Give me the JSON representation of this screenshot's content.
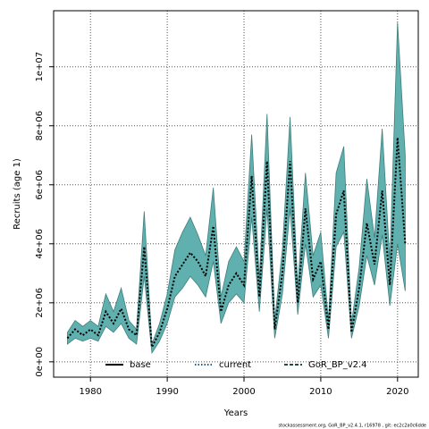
{
  "chart_data": {
    "type": "line",
    "x_label": "Years",
    "y_label": "Recruits (age 1)",
    "footer": "stockassessment.org, GoR_BP_v2.4.1, r16978 , git: ec2c2a0c6dde",
    "x": [
      1977,
      1978,
      1979,
      1980,
      1981,
      1982,
      1983,
      1984,
      1985,
      1986,
      1987,
      1988,
      1989,
      1990,
      1991,
      1992,
      1993,
      1994,
      1995,
      1996,
      1997,
      1998,
      1999,
      2000,
      2001,
      2002,
      2003,
      2004,
      2005,
      2006,
      2007,
      2008,
      2009,
      2010,
      2011,
      2012,
      2013,
      2014,
      2015,
      2016,
      2017,
      2018,
      2019,
      2020,
      2021
    ],
    "values": [
      800000.0,
      1100000.0,
      900000.0,
      1100000.0,
      900000.0,
      1700000.0,
      1300000.0,
      1800000.0,
      1100000.0,
      900000.0,
      3900000.0,
      500000.0,
      1000000.0,
      1800000.0,
      2900000.0,
      3300000.0,
      3700000.0,
      3400000.0,
      2900000.0,
      4600000.0,
      1700000.0,
      2600000.0,
      3000000.0,
      2600000.0,
      6300000.0,
      2200000.0,
      6800000.0,
      1100000.0,
      3000000.0,
      6800000.0,
      2000000.0,
      5200000.0,
      2800000.0,
      3400000.0,
      1100000.0,
      5000000.0,
      5800000.0,
      1000000.0,
      2500000.0,
      4700000.0,
      3300000.0,
      5800000.0,
      2600000.0,
      7600000.0,
      4000000.0
    ],
    "upper": [
      1000000.0,
      1400000.0,
      1200000.0,
      1400000.0,
      1200000.0,
      2300000.0,
      1700000.0,
      2500000.0,
      1400000.0,
      1100000.0,
      5100000.0,
      600000.0,
      1300000.0,
      2300000.0,
      3800000.0,
      4400000.0,
      4900000.0,
      4300000.0,
      3600000.0,
      5900000.0,
      2200000.0,
      3400000.0,
      3900000.0,
      3400000.0,
      7700000.0,
      2800000.0,
      8400000.0,
      1400000.0,
      3800000.0,
      8300000.0,
      2500000.0,
      6400000.0,
      3600000.0,
      4400000.0,
      1400000.0,
      6400000.0,
      7300000.0,
      1300000.0,
      3200000.0,
      6200000.0,
      4200000.0,
      7900000.0,
      3400000.0,
      11500000.0,
      7000000.0
    ],
    "lower": [
      600000.0,
      800000.0,
      700000.0,
      800000.0,
      700000.0,
      1200000.0,
      1000000.0,
      1300000.0,
      800000.0,
      600000.0,
      2900000.0,
      300000.0,
      700000.0,
      1300000.0,
      2200000.0,
      2500000.0,
      2900000.0,
      2600000.0,
      2200000.0,
      3400000.0,
      1300000.0,
      2000000.0,
      2300000.0,
      2000000.0,
      4900000.0,
      1700000.0,
      5200000.0,
      800000.0,
      2300000.0,
      5200000.0,
      1600000.0,
      4000000.0,
      2200000.0,
      2600000.0,
      800000.0,
      3900000.0,
      4400000.0,
      800000.0,
      1900000.0,
      3600000.0,
      2600000.0,
      4300000.0,
      1900000.0,
      4000000.0,
      2400000.0
    ],
    "color": "#000000",
    "band_color": "#5fb0ae",
    "band_edge": "#3f7f7d",
    "legend": [
      {
        "name": "base",
        "color": "#000000",
        "dash": "solid"
      },
      {
        "name": "current",
        "color": "#1f5f8f",
        "dash": "dotted"
      },
      {
        "name": "GoR_BP_v2.4",
        "color": "#1f4f3f",
        "dash": "dashed"
      }
    ],
    "xlim": [
      1975.2,
      2022.7
    ],
    "xticks": [
      1980,
      1990,
      2000,
      2010,
      2020
    ],
    "ylim": [
      -520000.0,
      11900000.0
    ],
    "yticks": [
      {
        "value": 0,
        "label": "0e+00"
      },
      {
        "value": 2000000.0,
        "label": "2e+06"
      },
      {
        "value": 4000000.0,
        "label": "4e+06"
      },
      {
        "value": 6000000.0,
        "label": "6e+06"
      },
      {
        "value": 8000000.0,
        "label": "8e+06"
      },
      {
        "value": 10000000.0,
        "label": "1e+07"
      }
    ],
    "grid": true
  }
}
